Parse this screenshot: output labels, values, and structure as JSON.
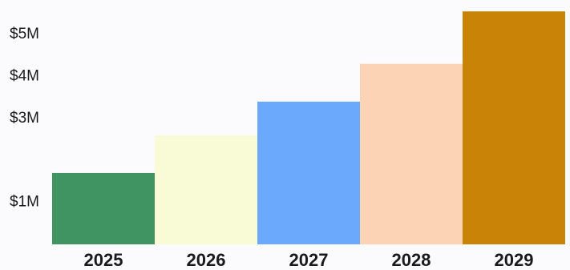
{
  "chart_data": {
    "type": "bar",
    "categories": [
      "2025",
      "2026",
      "2027",
      "2028",
      "2029"
    ],
    "values": [
      1700000,
      2600000,
      3400000,
      4300000,
      5550000
    ],
    "colors": [
      "#3f9462",
      "#f8fbd6",
      "#6aa9fb",
      "#fdd3b6",
      "#c98306"
    ],
    "ylim": [
      0,
      5600000
    ],
    "yticks": [
      {
        "value": 1000000,
        "label": "$1M"
      },
      {
        "value": 3000000,
        "label": "$3M"
      },
      {
        "value": 4000000,
        "label": "$4M"
      },
      {
        "value": 5000000,
        "label": "$5M"
      }
    ],
    "grid": false
  }
}
